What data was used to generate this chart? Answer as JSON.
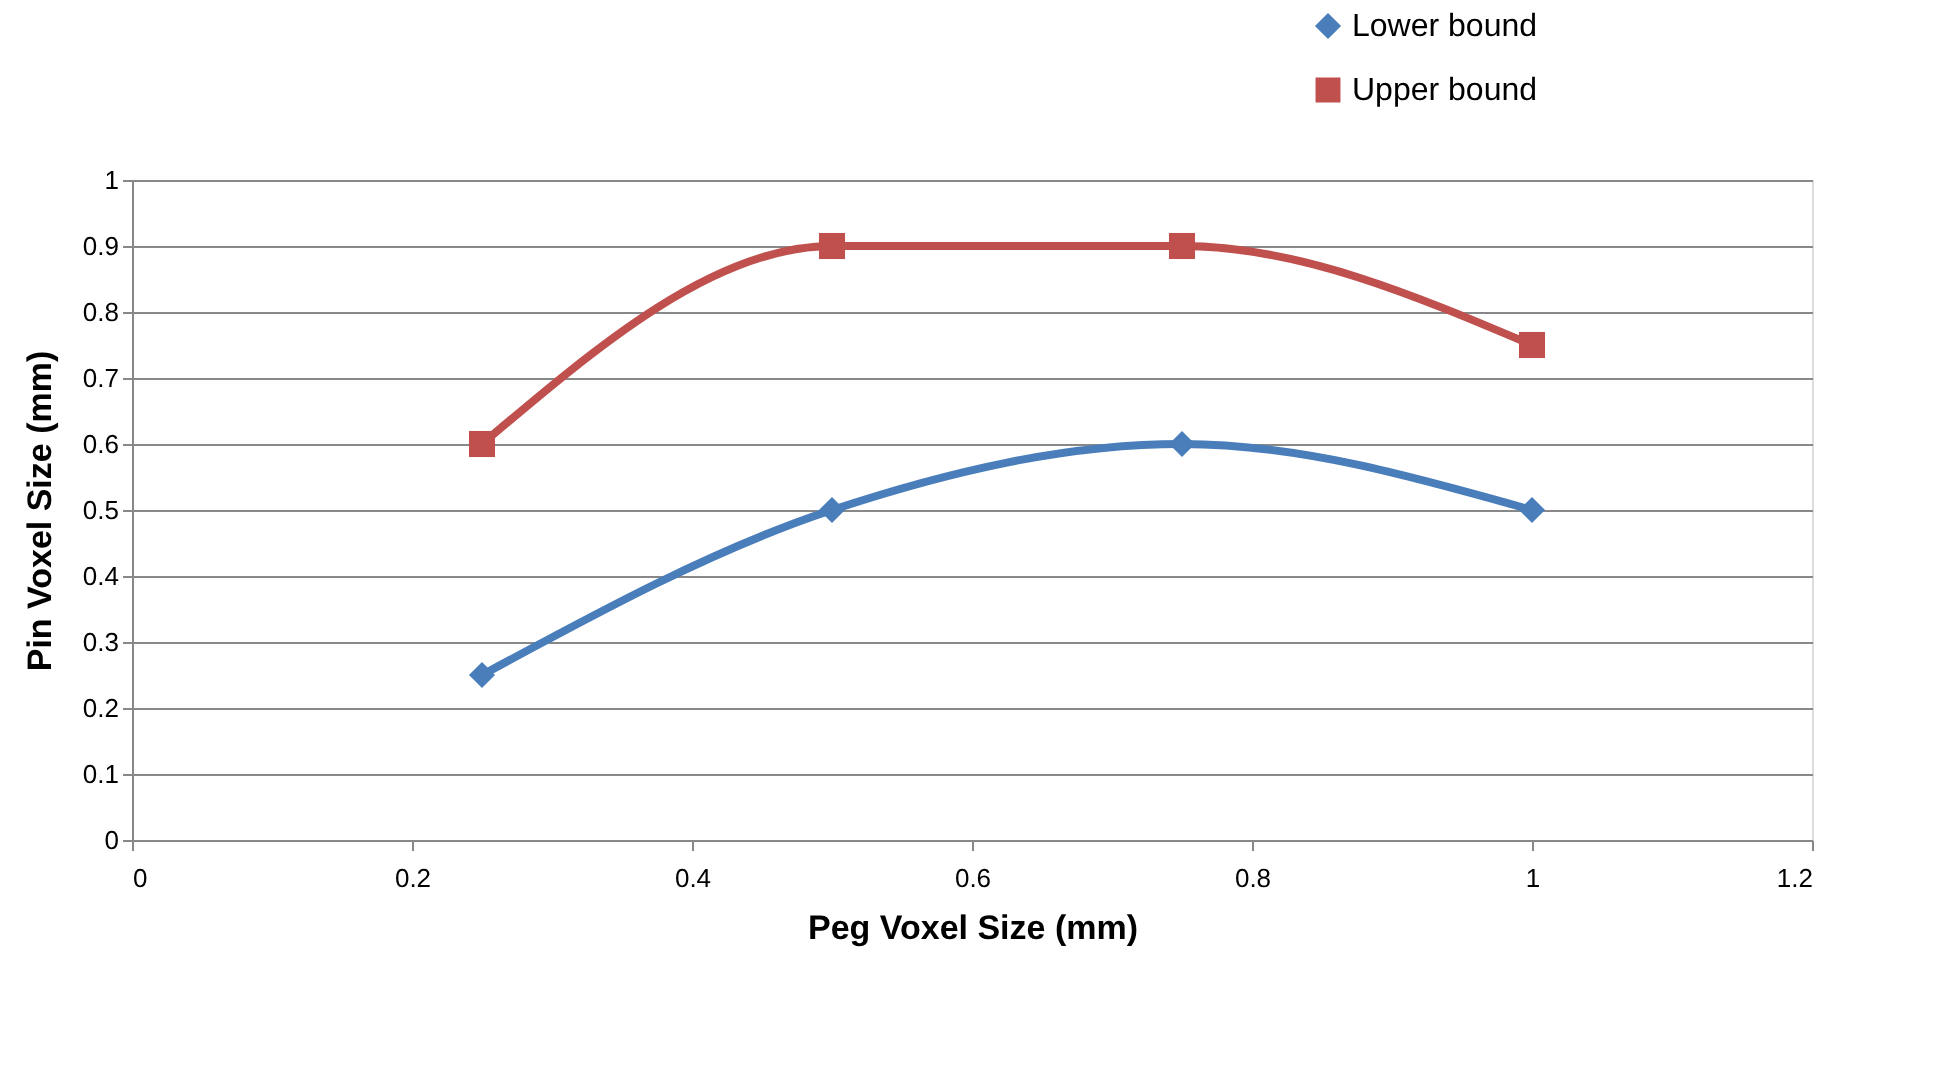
{
  "chart_data": {
    "type": "line",
    "xlabel": "Peg Voxel Size (mm)",
    "ylabel": "Pin Voxel Size (mm)",
    "x": [
      0.25,
      0.5,
      0.75,
      1
    ],
    "series": [
      {
        "name": "Lower bound",
        "color": "#4a7ebb",
        "values": [
          0.25,
          0.5,
          0.6,
          0.5
        ],
        "marker": "diamond"
      },
      {
        "name": "Upper bound",
        "color": "#c0504d",
        "values": [
          0.6,
          0.9,
          0.9,
          0.75
        ],
        "marker": "square"
      }
    ],
    "xlim": [
      0,
      1.2
    ],
    "xticks": [
      0,
      0.2,
      0.4,
      0.6,
      0.8,
      1,
      1.2
    ],
    "ylim": [
      0,
      1
    ],
    "yticks": [
      0,
      0.1,
      0.2,
      0.3,
      0.4,
      0.5,
      0.6,
      0.7,
      0.8,
      0.9,
      1
    ],
    "grid": "y",
    "legend": "top right",
    "line_style": "solid"
  }
}
